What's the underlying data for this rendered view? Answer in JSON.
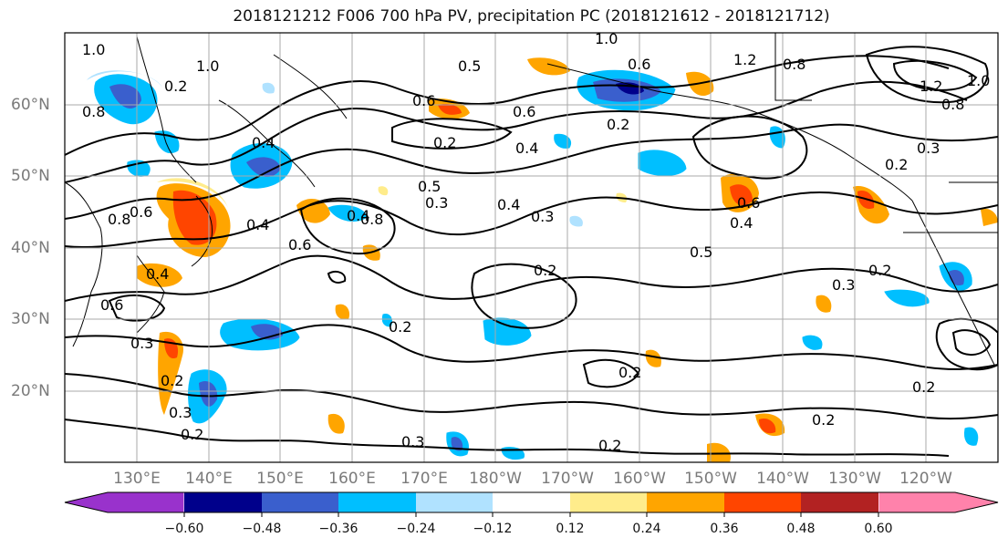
{
  "title": "2018121212 F006 700 hPa PV, precipitation PC (2018121612 - 2018121712)",
  "lat_labels": [
    "60°N",
    "50°N",
    "40°N",
    "30°N",
    "20°N"
  ],
  "lon_labels": [
    "130°E",
    "140°E",
    "150°E",
    "160°E",
    "170°E",
    "180°W",
    "170°W",
    "160°W",
    "150°W",
    "140°W",
    "130°W",
    "120°W"
  ],
  "colorbar": {
    "ticks": [
      "−0.60",
      "−0.48",
      "−0.36",
      "−0.24",
      "−0.12",
      "0.12",
      "0.24",
      "0.36",
      "0.48",
      "0.60"
    ],
    "colors": [
      "#9932cc",
      "#00008b",
      "#3a5fcd",
      "#00bfff",
      "#b0e2ff",
      "#ffffff",
      "#ffec8b",
      "#ffa500",
      "#ff4500",
      "#b22222",
      "#ff82ab"
    ]
  },
  "contour_labels": [
    "1.0",
    "0.8",
    "1.0",
    "0.4",
    "0.8",
    "0.6",
    "0.2",
    "0.4",
    "0.6",
    "0.8",
    "0.4",
    "0.5",
    "0.3",
    "0.4",
    "0.6",
    "0.3",
    "0.2",
    "0.5",
    "0.3",
    "0.2",
    "0.2",
    "0.3",
    "0.2",
    "0.2",
    "0.2",
    "0.4",
    "0.6",
    "1.2",
    "0.8",
    "1.0",
    "0.3",
    "0.6",
    "0.2",
    "0.6",
    "0.4",
    "0.2",
    "0.5",
    "0.3",
    "0.2",
    "0.2",
    "0.3",
    "0.2",
    "0.2",
    "1.2",
    "0.8",
    "1.0",
    "0.6",
    "0.4"
  ]
}
